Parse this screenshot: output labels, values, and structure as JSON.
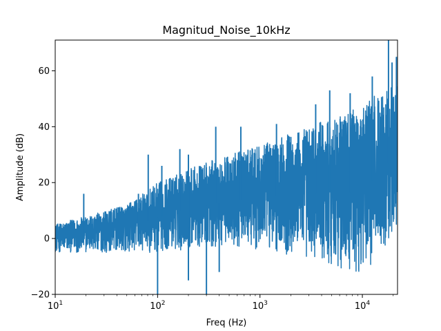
{
  "chart_data": {
    "type": "line",
    "title": "Magnitud_Noise_10kHz",
    "xlabel": "Freq (Hz)",
    "ylabel": "Amplitude (dB)",
    "xscale": "log",
    "xlim": [
      10,
      22050
    ],
    "ylim": [
      -20,
      71
    ],
    "grid": false,
    "series_color": "#1f77b4",
    "x_ticks": [
      {
        "value": 10,
        "base": "10",
        "exp": "1"
      },
      {
        "value": 100,
        "base": "10",
        "exp": "2"
      },
      {
        "value": 1000,
        "base": "10",
        "exp": "3"
      },
      {
        "value": 10000,
        "base": "10",
        "exp": "4"
      }
    ],
    "y_ticks": [
      {
        "value": -20,
        "label": "−20"
      },
      {
        "value": 0,
        "label": "0"
      },
      {
        "value": 20,
        "label": "20"
      },
      {
        "value": 40,
        "label": "40"
      },
      {
        "value": 60,
        "label": "60"
      }
    ],
    "series": [
      {
        "envelope": [
          {
            "x": 10,
            "low": -5,
            "high": 5
          },
          {
            "x": 20,
            "low": -5,
            "high": 8
          },
          {
            "x": 50,
            "low": -5,
            "high": 12
          },
          {
            "x": 100,
            "low": -5,
            "high": 20
          },
          {
            "x": 200,
            "low": -4,
            "high": 25
          },
          {
            "x": 500,
            "low": -3,
            "high": 30
          },
          {
            "x": 1000,
            "low": -4,
            "high": 33
          },
          {
            "x": 2000,
            "low": -6,
            "high": 38
          },
          {
            "x": 5000,
            "low": -10,
            "high": 43
          },
          {
            "x": 8000,
            "low": -13,
            "high": 46
          },
          {
            "x": 12000,
            "low": -10,
            "high": 50
          },
          {
            "x": 17000,
            "low": -2,
            "high": 54
          },
          {
            "x": 22050,
            "low": 5,
            "high": 55
          }
        ],
        "peaks": [
          {
            "x": 19,
            "y": 16
          },
          {
            "x": 65,
            "y": 16
          },
          {
            "x": 81,
            "y": 30
          },
          {
            "x": 110,
            "y": 26
          },
          {
            "x": 165,
            "y": 32
          },
          {
            "x": 200,
            "y": 30
          },
          {
            "x": 370,
            "y": 40
          },
          {
            "x": 650,
            "y": 40
          },
          {
            "x": 1450,
            "y": 41
          },
          {
            "x": 3500,
            "y": 48
          },
          {
            "x": 4800,
            "y": 53
          },
          {
            "x": 7600,
            "y": 52
          },
          {
            "x": 12500,
            "y": 58
          },
          {
            "x": 18000,
            "y": 71
          },
          {
            "x": 19500,
            "y": 63
          },
          {
            "x": 21500,
            "y": 65
          }
        ],
        "dips": [
          {
            "x": 100,
            "y": -20
          },
          {
            "x": 200,
            "y": -15
          },
          {
            "x": 300,
            "y": -20
          },
          {
            "x": 400,
            "y": -12
          }
        ]
      }
    ]
  }
}
